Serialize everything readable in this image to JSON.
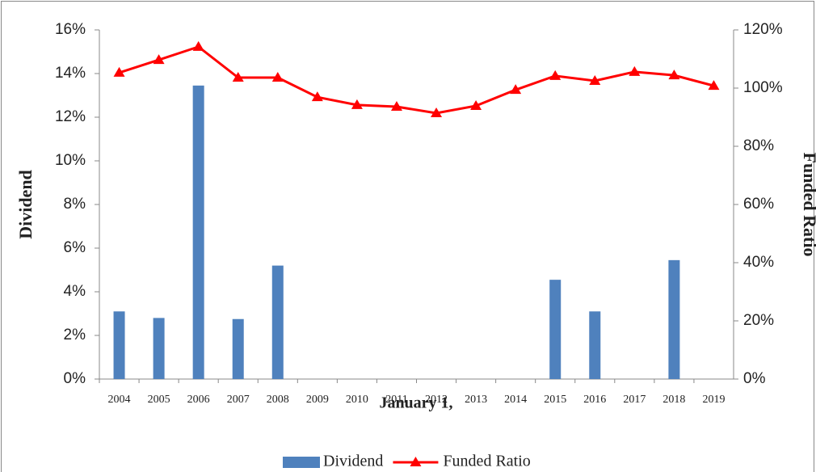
{
  "chart_data": {
    "type": "bar",
    "x_label": "January 1,",
    "y_label": "Dividend",
    "y2_label": "Funded Ratio",
    "categories": [
      "2004",
      "2005",
      "2006",
      "2007",
      "2008",
      "2009",
      "2010",
      "2011",
      "2012",
      "2013",
      "2014",
      "2015",
      "2016",
      "2017",
      "2018",
      "2019"
    ],
    "series": [
      {
        "name": "Dividend",
        "type": "bar",
        "color": "#4f81bd",
        "values": [
          3.1,
          2.8,
          13.45,
          2.75,
          5.2,
          0,
          0,
          0,
          0,
          0,
          0,
          4.55,
          3.1,
          0,
          5.45,
          0
        ]
      },
      {
        "name": "Funded Ratio",
        "type": "line",
        "axis": "y2",
        "color": "#ff0000",
        "values": [
          105.3,
          109.7,
          114.2,
          103.6,
          103.6,
          96.9,
          94.2,
          93.6,
          91.4,
          93.9,
          99.4,
          104.2,
          102.5,
          105.6,
          104.4,
          100.8
        ]
      }
    ],
    "ylim": [
      0,
      16
    ],
    "yticks": [
      {
        "value": 0,
        "label": "0%"
      },
      {
        "value": 2,
        "label": "2%"
      },
      {
        "value": 4,
        "label": "4%"
      },
      {
        "value": 6,
        "label": "6%"
      },
      {
        "value": 8,
        "label": "8%"
      },
      {
        "value": 10,
        "label": "10%"
      },
      {
        "value": 12,
        "label": "12%"
      },
      {
        "value": 14,
        "label": "14%"
      },
      {
        "value": 16,
        "label": "16%"
      }
    ],
    "y2lim": [
      0,
      120
    ],
    "y2ticks": [
      {
        "value": 0,
        "label": "0%"
      },
      {
        "value": 20,
        "label": "20%"
      },
      {
        "value": 40,
        "label": "40%"
      },
      {
        "value": 60,
        "label": "60%"
      },
      {
        "value": 80,
        "label": "80%"
      },
      {
        "value": 100,
        "label": "100%"
      },
      {
        "value": 120,
        "label": "120%"
      }
    ],
    "grid": false,
    "legend": "bottom"
  }
}
